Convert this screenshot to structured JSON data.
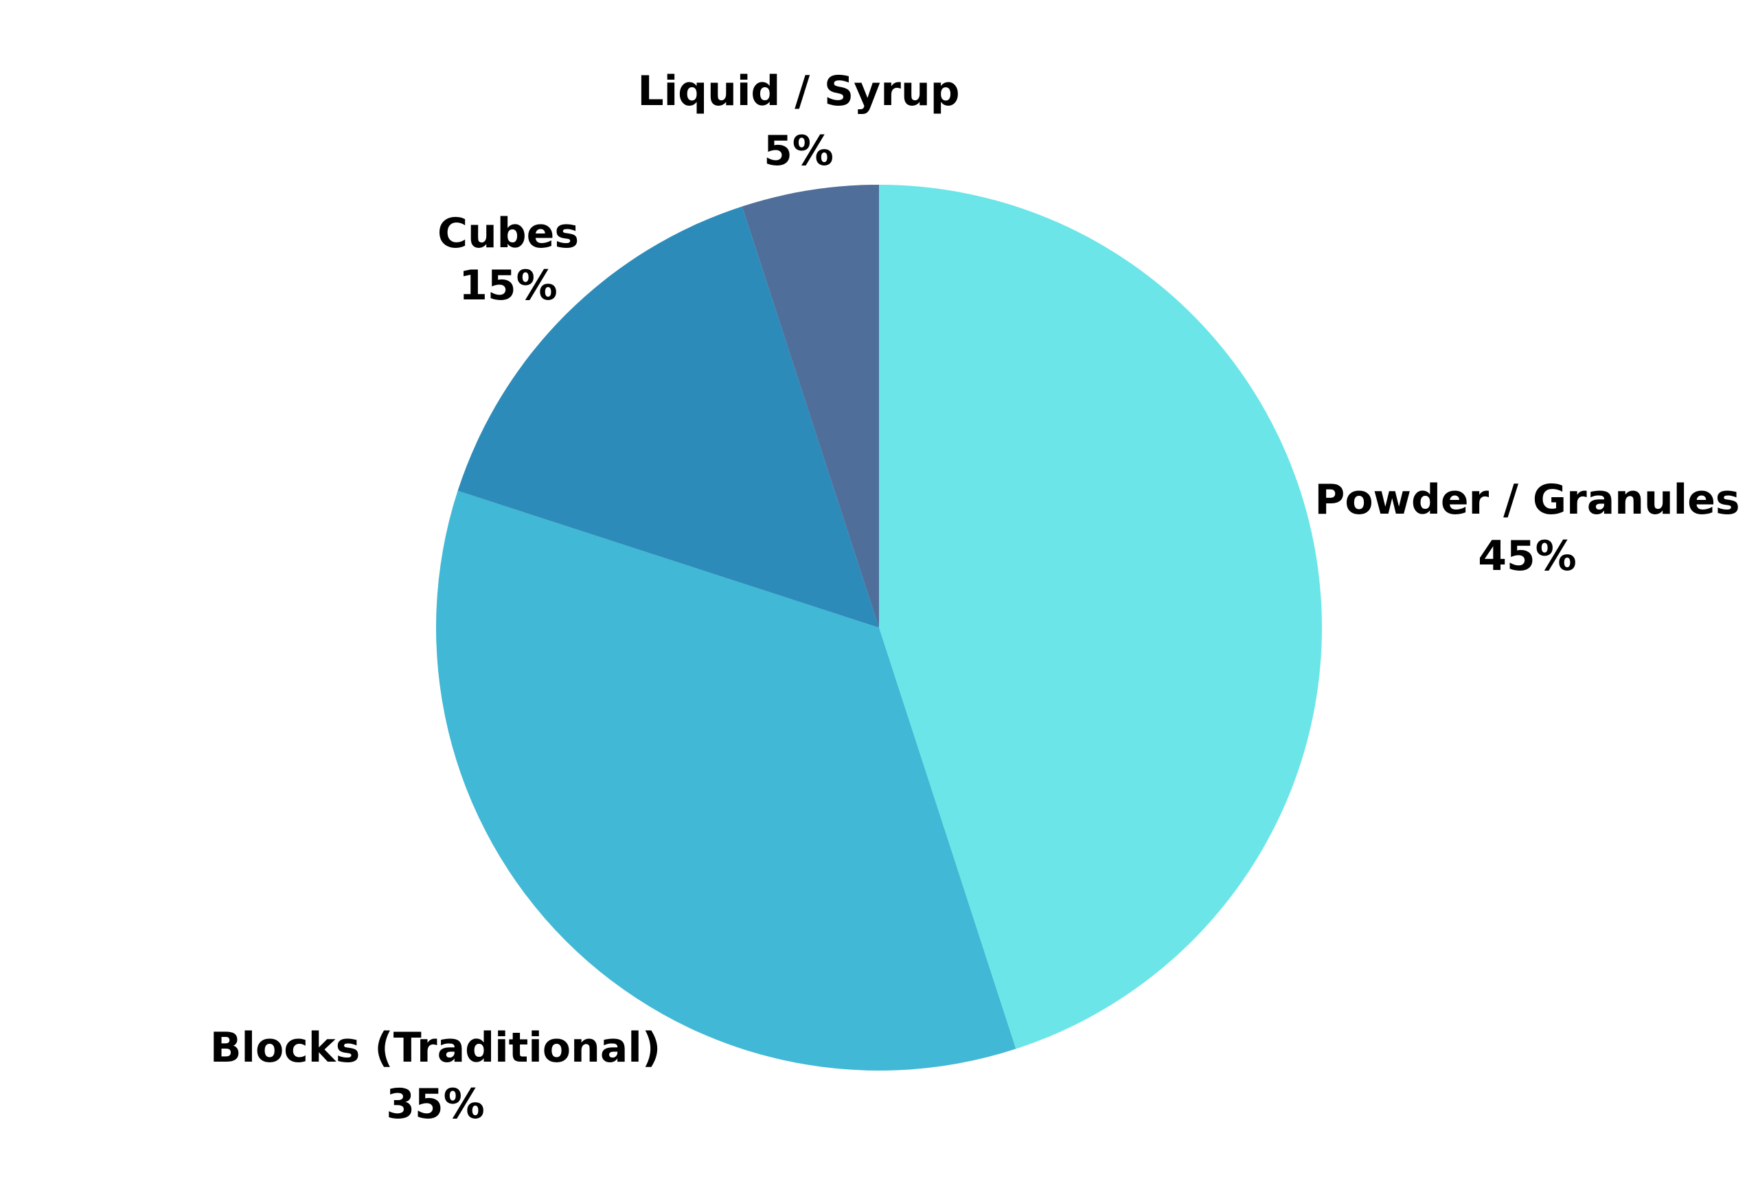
{
  "chart_data": {
    "type": "pie",
    "start": "top",
    "direction": "clockwise",
    "slices": [
      {
        "label": "Powder / Granules",
        "value": 45,
        "display": "45%",
        "color": "#6CE5E8"
      },
      {
        "label": "Blocks (Traditional)",
        "value": 35,
        "display": "35%",
        "color": "#41B8D5"
      },
      {
        "label": "Cubes",
        "value": 15,
        "display": "15%",
        "color": "#2D8BBA"
      },
      {
        "label": "Liquid / Syrup",
        "value": 5,
        "display": "5%",
        "color": "#506E9A"
      }
    ]
  }
}
